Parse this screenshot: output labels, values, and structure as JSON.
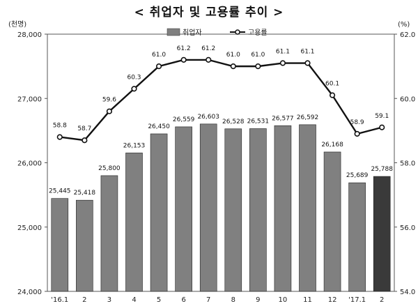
{
  "title": "< 취업자 및 고용률 추이 >",
  "chart_data": {
    "type": "bar",
    "title": "< 취업자 및 고용률 추이 >",
    "left_unit": "(천명)",
    "right_unit": "(%)",
    "categories": [
      "'16.1",
      "2",
      "3",
      "4",
      "5",
      "6",
      "7",
      "8",
      "9",
      "10",
      "11",
      "12",
      "'17.1",
      "2"
    ],
    "left_ylim": [
      24000,
      28000
    ],
    "left_ticks": [
      "24,000",
      "25,000",
      "26,000",
      "27,000",
      "28,000"
    ],
    "right_ylim": [
      54.0,
      62.0
    ],
    "right_ticks": [
      "54.0",
      "56.0",
      "58.0",
      "60.0",
      "62.0"
    ],
    "grid": false,
    "legend_position": "top-center",
    "series": [
      {
        "name": "취업자",
        "type": "bar",
        "axis": "left",
        "color": "#808080",
        "highlight_color": "#3a3a3a",
        "values": [
          25445,
          25418,
          25800,
          26153,
          26450,
          26559,
          26603,
          26528,
          26531,
          26577,
          26592,
          26168,
          25689,
          25788
        ],
        "labels": [
          "25,445",
          "25,418",
          "25,800",
          "26,153",
          "26,450",
          "26,559",
          "26,603",
          "26,528",
          "26,531",
          "26,577",
          "26,592",
          "26,168",
          "25,689",
          "25,788"
        ]
      },
      {
        "name": "고용률",
        "type": "line",
        "axis": "right",
        "color": "#111111",
        "values": [
          58.8,
          58.7,
          59.6,
          60.3,
          61.0,
          61.2,
          61.2,
          61.0,
          61.0,
          61.1,
          61.1,
          60.1,
          58.9,
          59.1
        ],
        "labels": [
          "58.8",
          "58.7",
          "59.6",
          "60.3",
          "61.0",
          "61.2",
          "61.2",
          "61.0",
          "61.0",
          "61.1",
          "61.1",
          "60.1",
          "58.9",
          "59.1"
        ]
      }
    ]
  }
}
